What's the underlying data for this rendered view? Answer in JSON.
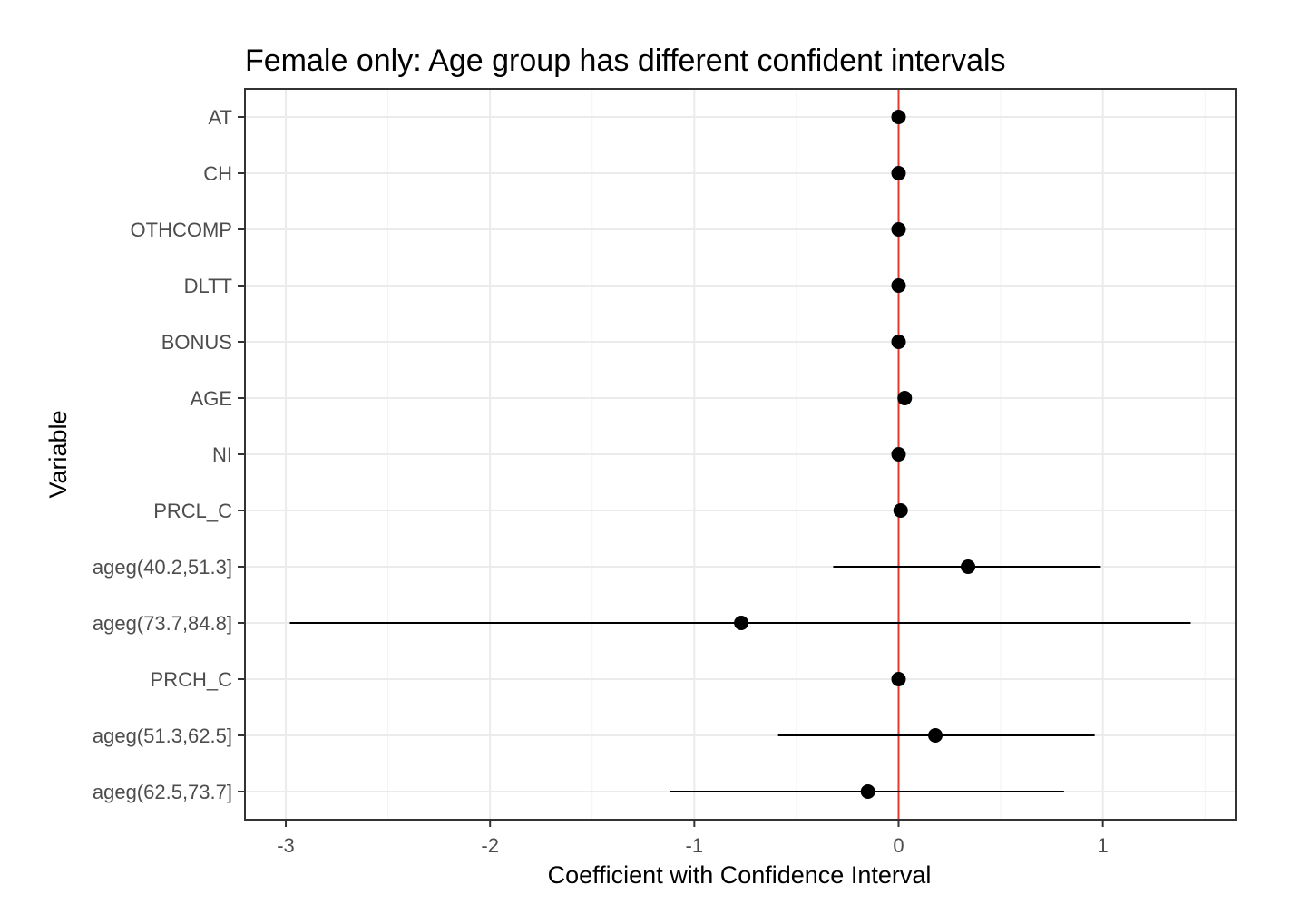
{
  "chart_data": {
    "type": "scatter",
    "title": "Female only: Age group has different confident intervals",
    "xlabel": "Coefficient with Confidence Interval",
    "ylabel": "Variable",
    "xlim": [
      -3.2,
      1.65
    ],
    "x_ticks": [
      -3,
      -2,
      -1,
      0,
      1
    ],
    "x_tick_labels": [
      "-3",
      "-2",
      "-1",
      "0",
      "1"
    ],
    "reference_line": {
      "x": 0,
      "color": "#e8392e"
    },
    "grid": true,
    "legend": "none",
    "point_color": "#000000",
    "points": [
      {
        "label": "AT",
        "estimate": 0.0,
        "lower": 0.0,
        "upper": 0.0
      },
      {
        "label": "CH",
        "estimate": 0.0,
        "lower": 0.0,
        "upper": 0.0
      },
      {
        "label": "OTHCOMP",
        "estimate": 0.0,
        "lower": 0.0,
        "upper": 0.0
      },
      {
        "label": "DLTT",
        "estimate": 0.0,
        "lower": 0.0,
        "upper": 0.0
      },
      {
        "label": "BONUS",
        "estimate": 0.0,
        "lower": 0.0,
        "upper": 0.0
      },
      {
        "label": "AGE",
        "estimate": 0.03,
        "lower": 0.03,
        "upper": 0.03
      },
      {
        "label": "NI",
        "estimate": 0.0,
        "lower": 0.0,
        "upper": 0.0
      },
      {
        "label": "PRCL_C",
        "estimate": 0.01,
        "lower": 0.01,
        "upper": 0.01
      },
      {
        "label": "ageg(40.2,51.3]",
        "estimate": 0.34,
        "lower": -0.32,
        "upper": 0.99
      },
      {
        "label": "ageg(73.7,84.8]",
        "estimate": -0.77,
        "lower": -2.98,
        "upper": 1.43
      },
      {
        "label": "PRCH_C",
        "estimate": 0.0,
        "lower": 0.0,
        "upper": 0.0
      },
      {
        "label": "ageg(51.3,62.5]",
        "estimate": 0.18,
        "lower": -0.59,
        "upper": 0.96
      },
      {
        "label": "ageg(62.5,73.7]",
        "estimate": -0.15,
        "lower": -1.12,
        "upper": 0.81
      }
    ]
  }
}
